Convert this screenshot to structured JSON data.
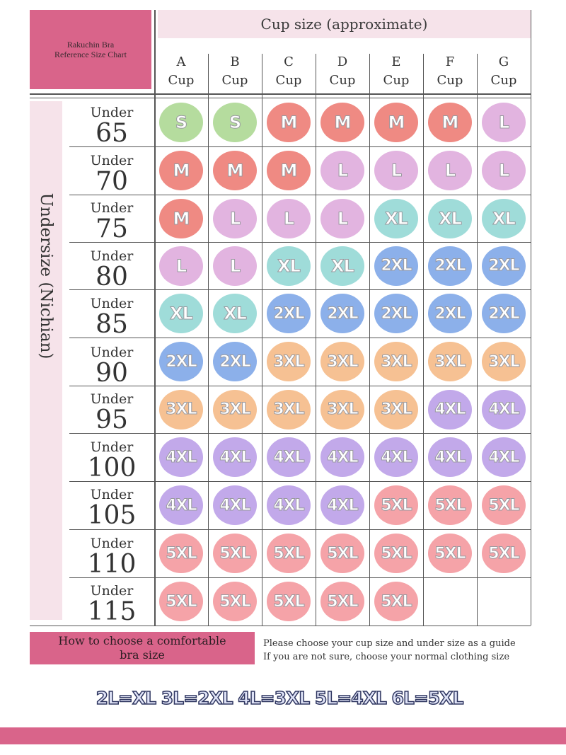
{
  "title": {
    "line1": "Rakuchin Bra",
    "line2": "Reference Size Chart"
  },
  "cup_header": "Cup size (approximate)",
  "cups": [
    {
      "letter": "A",
      "cup": "Cup"
    },
    {
      "letter": "B",
      "cup": "Cup"
    },
    {
      "letter": "C",
      "cup": "Cup"
    },
    {
      "letter": "D",
      "cup": "Cup"
    },
    {
      "letter": "E",
      "cup": "Cup"
    },
    {
      "letter": "F",
      "cup": "Cup"
    },
    {
      "letter": "G",
      "cup": "Cup"
    }
  ],
  "side_label": "Undersize (Nichian)",
  "rows": [
    {
      "under": "Under",
      "num": "65"
    },
    {
      "under": "Under",
      "num": "70"
    },
    {
      "under": "Under",
      "num": "75"
    },
    {
      "under": "Under",
      "num": "80"
    },
    {
      "under": "Under",
      "num": "85"
    },
    {
      "under": "Under",
      "num": "90"
    },
    {
      "under": "Under",
      "num": "95"
    },
    {
      "under": "Under",
      "num": "100"
    },
    {
      "under": "Under",
      "num": "105"
    },
    {
      "under": "Under",
      "num": "110"
    },
    {
      "under": "Under",
      "num": "115"
    }
  ],
  "sizes": [
    [
      "S",
      "S",
      "M",
      "M",
      "M",
      "M",
      "L"
    ],
    [
      "M",
      "M",
      "M",
      "L",
      "L",
      "L",
      "L"
    ],
    [
      "M",
      "L",
      "L",
      "L",
      "XL",
      "XL",
      "XL"
    ],
    [
      "L",
      "L",
      "XL",
      "XL",
      "2XL",
      "2XL",
      "2XL"
    ],
    [
      "XL",
      "XL",
      "2XL",
      "2XL",
      "2XL",
      "2XL",
      "2XL"
    ],
    [
      "2XL",
      "2XL",
      "3XL",
      "3XL",
      "3XL",
      "3XL",
      "3XL"
    ],
    [
      "3XL",
      "3XL",
      "3XL",
      "3XL",
      "3XL",
      "4XL",
      "4XL"
    ],
    [
      "4XL",
      "4XL",
      "4XL",
      "4XL",
      "4XL",
      "4XL",
      "4XL"
    ],
    [
      "4XL",
      "4XL",
      "4XL",
      "4XL",
      "5XL",
      "5XL",
      "5XL"
    ],
    [
      "5XL",
      "5XL",
      "5XL",
      "5XL",
      "5XL",
      "5XL",
      "5XL"
    ],
    [
      "5XL",
      "5XL",
      "5XL",
      "5XL",
      "5XL",
      "",
      ""
    ]
  ],
  "colors": {
    "S": "#b5dc9e",
    "M": "#ef8a83",
    "L": "#e2b4e0",
    "XL": "#9fdcd9",
    "2XL": "#8cb0ea",
    "3XL": "#f6c193",
    "4XL": "#c2a9ea",
    "5XL": "#f5a3a8",
    "accent_pink": "#d9648a",
    "light_pink": "#f6e3ea"
  },
  "how_to": {
    "line1": "How to choose a comfortable",
    "line2": "bra size"
  },
  "guide": {
    "line1": "Please choose your cup size and under size as a guide",
    "line2": "If you are not sure, choose your normal clothing size"
  },
  "equivalence": "2L=XL 3L=2XL 4L=3XL 5L=4XL 6L=5XL"
}
